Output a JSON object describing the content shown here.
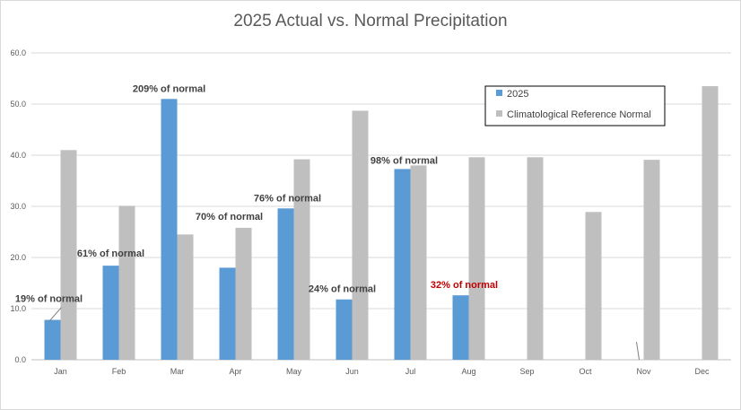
{
  "chart_data": {
    "type": "bar",
    "title": "2025 Actual vs. Normal Precipitation",
    "xlabel": "",
    "ylabel": "",
    "ylim": [
      0,
      60
    ],
    "yticks": [
      "0.0",
      "10.0",
      "20.0",
      "30.0",
      "40.0",
      "50.0",
      "60.0"
    ],
    "grid": true,
    "legend_position": "top-right",
    "categories": [
      "Jan",
      "Feb",
      "Mar",
      "Apr",
      "May",
      "Jun",
      "Jul",
      "Aug",
      "Sep",
      "Oct",
      "Nov",
      "Dec"
    ],
    "series": [
      {
        "name": "2025",
        "color": "#5b9bd5",
        "values": [
          7.8,
          18.4,
          51.0,
          18.0,
          29.6,
          11.8,
          37.3,
          12.6,
          null,
          null,
          null,
          null
        ]
      },
      {
        "name": "Climatological Reference Normal",
        "color": "#bfbfbf",
        "values": [
          41.0,
          30.1,
          24.5,
          25.8,
          39.2,
          48.7,
          38.0,
          39.6,
          39.6,
          28.9,
          39.1,
          53.5
        ]
      }
    ],
    "annotations": [
      {
        "month": "Jan",
        "text": "19% of normal",
        "color": "#404040"
      },
      {
        "month": "Feb",
        "text": "61% of normal",
        "color": "#404040"
      },
      {
        "month": "Mar",
        "text": "209% of normal",
        "color": "#404040"
      },
      {
        "month": "Apr",
        "text": "70% of normal",
        "color": "#404040"
      },
      {
        "month": "May",
        "text": "76% of normal",
        "color": "#404040"
      },
      {
        "month": "Jun",
        "text": "24% of normal",
        "color": "#404040"
      },
      {
        "month": "Jul",
        "text": "98% of normal",
        "color": "#404040"
      },
      {
        "month": "Aug",
        "text": "32% of normal",
        "color": "#c00000"
      }
    ]
  }
}
